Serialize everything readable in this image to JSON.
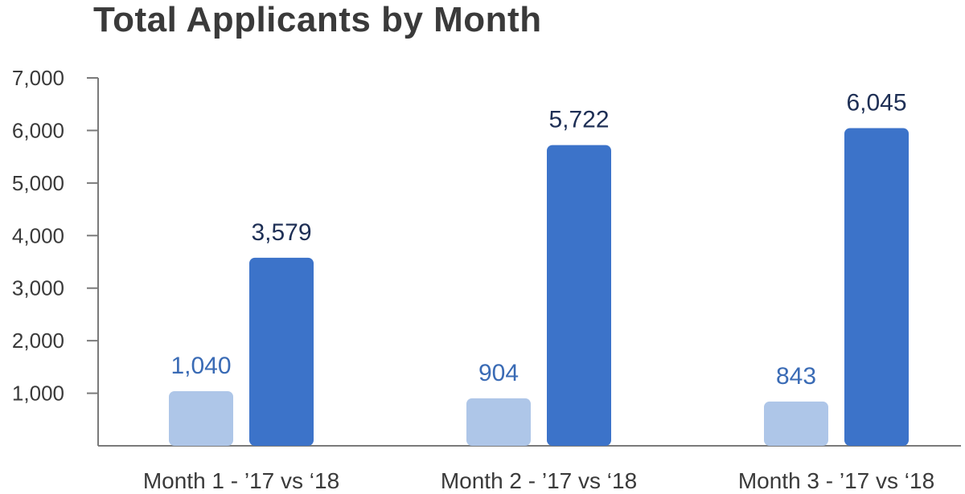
{
  "chart_data": {
    "type": "bar",
    "title": "Total Applicants by Month",
    "xlabel": "",
    "ylabel": "",
    "categories": [
      "Month 1 - ’17 vs ‘18",
      "Month 2  - ’17 vs ‘18",
      "Month 3 - ’17 vs ‘18"
    ],
    "series": [
      {
        "values": [
          1040,
          904,
          843
        ],
        "color": "#aec6e8",
        "label_color": "#3a6bb5"
      },
      {
        "values": [
          3579,
          5722,
          6045
        ],
        "color": "#3c73c9",
        "label_color": "#1e2f55"
      }
    ],
    "value_labels": [
      [
        "1,040",
        "904",
        "843"
      ],
      [
        "3,579",
        "5,722",
        "6,045"
      ]
    ],
    "ylim": [
      0,
      7000
    ],
    "yticks": [
      1000,
      2000,
      3000,
      4000,
      5000,
      6000,
      7000
    ],
    "ytick_labels": [
      "1,000",
      "2,000",
      "3,000",
      "4,000",
      "5,000",
      "6,000",
      "7,000"
    ],
    "grid": false,
    "legend": "none"
  }
}
